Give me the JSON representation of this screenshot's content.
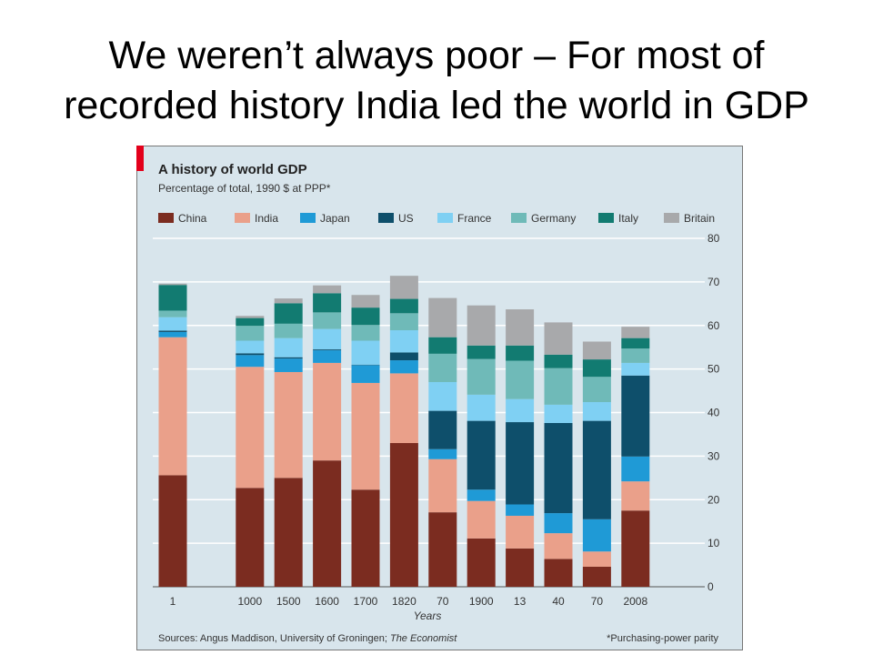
{
  "slide": {
    "title_line1": "We weren’t always poor – For most of",
    "title_line2": "recorded history India led the world in GDP"
  },
  "chart_data": {
    "type": "bar",
    "stacked": true,
    "title": "A history of world GDP",
    "subtitle": "Percentage of total, 1990 $ at PPP*",
    "xlabel": "Years",
    "ylabel": "",
    "ylim": [
      0,
      80
    ],
    "yticks": [
      0,
      10,
      20,
      30,
      40,
      50,
      60,
      70,
      80
    ],
    "grid": true,
    "legend": "top",
    "categories": [
      "1",
      "1000",
      "1500",
      "1600",
      "1700",
      "1820",
      "70",
      "1900",
      "13",
      "40",
      "70",
      "2008"
    ],
    "category_positions": [
      1,
      3,
      4,
      5,
      6,
      7,
      8,
      9,
      10,
      11,
      12,
      13
    ],
    "series": [
      {
        "name": "China",
        "color": "#7b2c20",
        "values": [
          25.6,
          22.7,
          25.0,
          29.0,
          22.3,
          33.0,
          17.1,
          11.1,
          8.8,
          6.4,
          4.6,
          17.5
        ]
      },
      {
        "name": "India",
        "color": "#eaa08a",
        "values": [
          31.7,
          27.8,
          24.3,
          22.4,
          24.5,
          16.0,
          12.2,
          8.6,
          7.5,
          5.9,
          3.5,
          6.7
        ]
      },
      {
        "name": "Japan",
        "color": "#1f9ad6",
        "values": [
          1.2,
          2.7,
          3.1,
          2.9,
          4.1,
          3.0,
          2.3,
          2.6,
          2.6,
          4.6,
          7.4,
          5.7
        ]
      },
      {
        "name": "US",
        "color": "#0e4f6b",
        "values": [
          0.3,
          0.4,
          0.3,
          0.2,
          0.1,
          1.8,
          8.8,
          15.8,
          18.9,
          20.7,
          22.6,
          18.6
        ]
      },
      {
        "name": "France",
        "color": "#7fd0f3",
        "values": [
          3.1,
          2.9,
          4.4,
          4.7,
          5.5,
          5.1,
          6.6,
          6.0,
          5.3,
          4.2,
          4.3,
          2.9
        ]
      },
      {
        "name": "Germany",
        "color": "#6fbab8",
        "values": [
          1.5,
          3.4,
          3.3,
          3.8,
          3.6,
          3.9,
          6.5,
          8.2,
          8.8,
          8.4,
          5.8,
          3.3
        ]
      },
      {
        "name": "Italy",
        "color": "#127b71",
        "values": [
          5.9,
          1.8,
          4.7,
          4.4,
          4.0,
          3.3,
          3.8,
          3.1,
          3.5,
          3.1,
          4.0,
          2.4
        ]
      },
      {
        "name": "Britain",
        "color": "#a8a9ab",
        "values": [
          0.3,
          0.5,
          1.1,
          1.8,
          2.9,
          5.3,
          9.0,
          9.2,
          8.3,
          7.4,
          4.1,
          2.6
        ]
      }
    ],
    "sources_text": "Sources: Angus Maddison, University of Groningen; ",
    "sources_italic": "The Economist",
    "footnote": "*Purchasing-power parity",
    "colors": {
      "panel": "#d8e5ec",
      "grid": "#ffffff",
      "border": "#777777",
      "accent": "#e3001b",
      "text": "#333333"
    }
  }
}
